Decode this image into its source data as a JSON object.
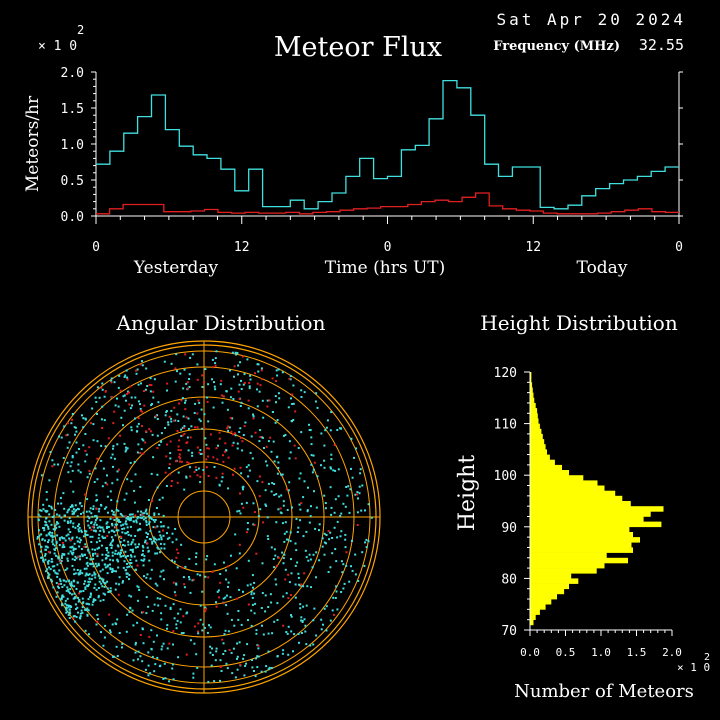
{
  "header": {
    "date": "Sat Apr 20 2024",
    "freq_label": "Frequency (MHz)",
    "freq_value": "32.55",
    "title": "Meteor Flux",
    "exponent_base": "× 1 0",
    "exponent": "2"
  },
  "colors": {
    "background": "#000000",
    "foreground": "#ffffff",
    "series_primary": "#40e0e0",
    "series_secondary": "#e02020",
    "ring": "#ffa500",
    "crosshair": "#ffa500",
    "height_bar": "#ffff00"
  },
  "chart_data": [
    {
      "type": "line",
      "title": "Meteor Flux",
      "ylabel": "Meteors/hr",
      "xlabel": "Time (hrs UT)",
      "day_labels": [
        "Yesterday",
        "Today"
      ],
      "x_ticks": [
        "0",
        "12",
        "0",
        "12",
        "0"
      ],
      "y_ticks": [
        "0.0",
        "0.5",
        "1.0",
        "1.5",
        "2.0"
      ],
      "xlim": [
        0,
        48
      ],
      "ylim": [
        0,
        2.0
      ],
      "y_multiplier": "x10^2",
      "step": true,
      "series": [
        {
          "values": [
            0.72,
            0.9,
            1.15,
            1.38,
            1.68,
            1.2,
            0.97,
            0.85,
            0.8,
            0.65,
            0.35,
            0.65,
            0.13,
            0.13,
            0.22,
            0.1,
            0.2,
            0.32,
            0.55,
            0.8,
            0.52,
            0.55,
            0.92,
            0.98,
            1.35,
            1.88,
            1.78,
            1.4,
            0.72,
            0.55,
            0.68,
            0.68,
            0.12,
            0.1,
            0.15,
            0.28,
            0.38,
            0.45,
            0.5,
            0.55,
            0.62,
            0.68
          ]
        },
        {
          "values": [
            0.03,
            0.1,
            0.16,
            0.16,
            0.16,
            0.06,
            0.06,
            0.07,
            0.09,
            0.05,
            0.04,
            0.05,
            0.04,
            0.04,
            0.05,
            0.03,
            0.05,
            0.06,
            0.08,
            0.1,
            0.11,
            0.13,
            0.13,
            0.16,
            0.2,
            0.22,
            0.2,
            0.26,
            0.32,
            0.14,
            0.1,
            0.08,
            0.07,
            0.04,
            0.03,
            0.03,
            0.03,
            0.04,
            0.06,
            0.08,
            0.1,
            0.06,
            0.05
          ]
        }
      ]
    },
    {
      "type": "scatter",
      "title": "Angular Distribution",
      "polar": true,
      "series": [
        {
          "color": "#40e0e0"
        },
        {
          "color": "#e02020"
        }
      ]
    },
    {
      "type": "bar",
      "orientation": "horizontal",
      "title": "Height Distribution",
      "ylabel": "Height",
      "xlabel": "Number of Meteors",
      "x_ticks": [
        "0.0",
        "0.5",
        "1.0",
        "1.5",
        "2.0"
      ],
      "xlim": [
        0,
        2.0
      ],
      "x_multiplier": "x10^2",
      "y_ticks": [
        "70",
        "80",
        "90",
        "100",
        "110",
        "120"
      ],
      "ylim": [
        70,
        120
      ],
      "bin_size": 1,
      "heights": [
        71,
        72,
        73,
        74,
        75,
        76,
        77,
        78,
        79,
        80,
        81,
        82,
        83,
        84,
        85,
        86,
        87,
        88,
        89,
        90,
        91,
        92,
        93,
        94,
        95,
        96,
        97,
        98,
        99,
        100,
        101,
        102,
        103,
        104,
        105,
        106,
        107,
        108,
        109,
        110,
        111,
        112,
        113,
        114,
        115,
        116,
        117,
        118,
        119
      ],
      "values": [
        0.05,
        0.08,
        0.14,
        0.22,
        0.3,
        0.38,
        0.48,
        0.55,
        0.68,
        0.58,
        0.94,
        1.05,
        1.38,
        1.08,
        1.45,
        1.43,
        1.55,
        1.45,
        1.4,
        1.85,
        1.6,
        1.7,
        1.88,
        1.42,
        1.3,
        1.2,
        1.05,
        0.95,
        0.75,
        0.55,
        0.45,
        0.35,
        0.28,
        0.24,
        0.22,
        0.2,
        0.18,
        0.16,
        0.14,
        0.12,
        0.11,
        0.1,
        0.08,
        0.06,
        0.05,
        0.04,
        0.03,
        0.02,
        0.02
      ]
    }
  ]
}
